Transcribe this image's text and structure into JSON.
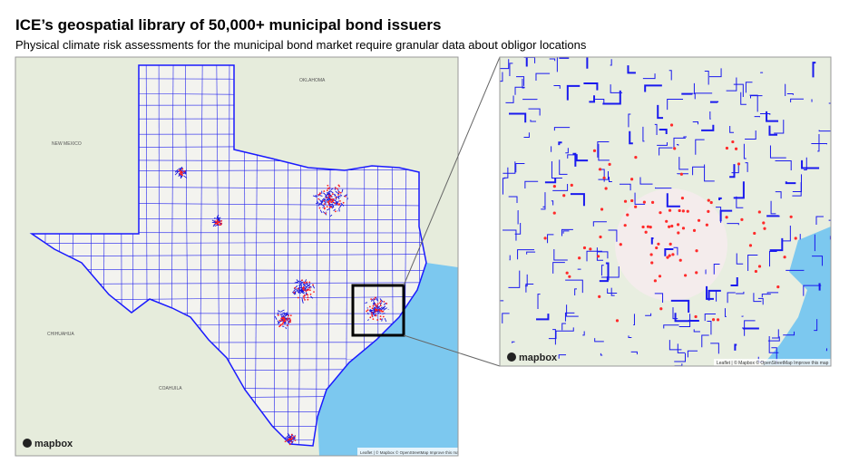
{
  "header": {
    "title": "ICE’s geospatial library of 50,000+ municipal bond issuers",
    "subtitle": "Physical climate risk assessments for the municipal bond market require granular data about obligor locations"
  },
  "main_map": {
    "labels": [
      "NEW MEXICO",
      "OKLAHOMA",
      "CHIHUAHUA",
      "COAHUILA"
    ],
    "logo": "mapbox",
    "attribution": "Leaflet | © Mapbox © OpenStreetMap Improve this map"
  },
  "inset_map": {
    "logo": "mapbox",
    "attribution": "Leaflet | © Mapbox © OpenStreetMap Improve this map"
  }
}
